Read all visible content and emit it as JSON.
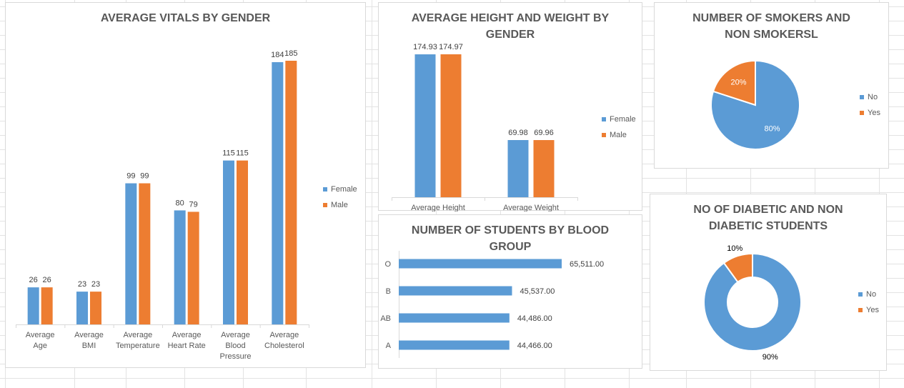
{
  "colors": {
    "female": "#5b9bd5",
    "male": "#ed7d31",
    "axis": "#d9d9d9",
    "text": "#595959"
  },
  "chart_data": [
    {
      "id": "vitals",
      "type": "bar",
      "title": "AVERAGE VITALS BY GENDER",
      "categories": [
        [
          "Average",
          "Age"
        ],
        [
          "Average",
          "BMI"
        ],
        [
          "Average",
          "Temperature"
        ],
        [
          "Average",
          "Heart Rate"
        ],
        [
          "Average",
          "Blood",
          "Pressure"
        ],
        [
          "Average",
          "Cholesterol"
        ]
      ],
      "series": [
        {
          "name": "Female",
          "values": [
            26,
            23,
            99,
            80,
            115,
            184
          ]
        },
        {
          "name": "Male",
          "values": [
            26,
            23,
            99,
            79,
            115,
            185
          ]
        }
      ],
      "legend": "right",
      "grid": false
    },
    {
      "id": "height_weight",
      "type": "bar",
      "title": "AVERAGE HEIGHT AND WEIGHT BY GENDER",
      "categories": [
        [
          "Average",
          "Height"
        ],
        [
          "Average",
          "Weight"
        ]
      ],
      "series": [
        {
          "name": "Female",
          "values": [
            174.93,
            69.98
          ]
        },
        {
          "name": "Male",
          "values": [
            174.97,
            69.96
          ]
        }
      ],
      "legend": "right",
      "grid": false
    },
    {
      "id": "blood",
      "type": "bar",
      "orientation": "horizontal",
      "title": "NUMBER OF STUDENTS BY BLOOD GROUP",
      "categories": [
        "O",
        "B",
        "AB",
        "A"
      ],
      "values": [
        65511,
        45537,
        44486,
        44466
      ],
      "labels": [
        "65,511.00",
        "45,537.00",
        "44,486.00",
        "44,466.00"
      ],
      "grid": false
    },
    {
      "id": "smokers",
      "type": "pie",
      "title": "NUMBER OF SMOKERS AND NON SMOKERSL",
      "categories": [
        "No",
        "Yes"
      ],
      "values": [
        80,
        20
      ],
      "labels": [
        "80%",
        "20%"
      ],
      "legend": "right"
    },
    {
      "id": "diabetic",
      "type": "pie",
      "variant": "doughnut",
      "title": "NO OF DIABETIC AND NON DIABETIC STUDENTS",
      "categories": [
        "No",
        "Yes"
      ],
      "values": [
        90,
        10
      ],
      "labels": [
        "90%",
        "10%"
      ],
      "legend": "right"
    }
  ]
}
